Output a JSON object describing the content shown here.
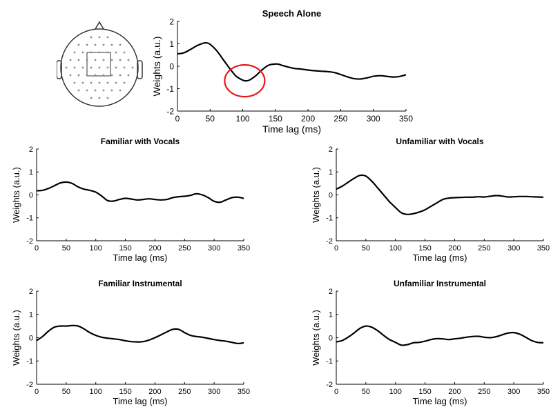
{
  "head_diagram": {
    "description_icon": "head-electrode-map-icon"
  },
  "colors": {
    "line": "#000000",
    "highlight": "#e8191b",
    "axis": "#000000",
    "electrode": "#8a8a8a"
  },
  "chart_data": [
    {
      "type": "line",
      "title": "Speech Alone",
      "xlabel": "Time lag (ms)",
      "ylabel": "Weights (a.u.)",
      "xlim": [
        0,
        350
      ],
      "ylim": [
        -2,
        2
      ],
      "xticks": [
        "0",
        "50",
        "100",
        "150",
        "200",
        "250",
        "300",
        "350"
      ],
      "yticks": [
        "-2",
        "-1",
        "0",
        "1",
        "2"
      ],
      "grid": false,
      "annotation": {
        "type": "circle",
        "x": 103,
        "y": -0.65,
        "color": "#e8191b"
      },
      "series": [
        {
          "x": [
            0,
            10,
            20,
            30,
            40,
            45,
            50,
            60,
            70,
            80,
            90,
            100,
            105,
            110,
            120,
            130,
            140,
            150,
            155,
            160,
            170,
            180,
            190,
            200,
            210,
            220,
            230,
            240,
            250,
            260,
            270,
            280,
            290,
            300,
            310,
            320,
            330,
            340,
            350
          ],
          "values": [
            0.55,
            0.6,
            0.75,
            0.92,
            1.03,
            1.04,
            0.98,
            0.7,
            0.3,
            -0.1,
            -0.45,
            -0.62,
            -0.65,
            -0.62,
            -0.42,
            -0.15,
            0.05,
            0.1,
            0.09,
            0.04,
            -0.04,
            -0.1,
            -0.13,
            -0.17,
            -0.2,
            -0.22,
            -0.24,
            -0.28,
            -0.37,
            -0.47,
            -0.55,
            -0.57,
            -0.52,
            -0.45,
            -0.42,
            -0.45,
            -0.48,
            -0.46,
            -0.38
          ]
        }
      ]
    },
    {
      "type": "line",
      "title": "Familiar with Vocals",
      "xlabel": "Time lag (ms)",
      "ylabel": "Weights (a.u.)",
      "xlim": [
        0,
        350
      ],
      "ylim": [
        -2,
        2
      ],
      "xticks": [
        "0",
        "50",
        "100",
        "150",
        "200",
        "250",
        "300",
        "350"
      ],
      "yticks": [
        "-2",
        "-1",
        "0",
        "1",
        "2"
      ],
      "grid": false,
      "series": [
        {
          "x": [
            0,
            10,
            20,
            30,
            40,
            50,
            60,
            70,
            80,
            90,
            100,
            110,
            120,
            130,
            140,
            150,
            160,
            170,
            180,
            190,
            200,
            210,
            220,
            230,
            240,
            250,
            260,
            270,
            280,
            290,
            300,
            310,
            320,
            330,
            340,
            350
          ],
          "values": [
            0.18,
            0.2,
            0.28,
            0.4,
            0.52,
            0.56,
            0.5,
            0.35,
            0.25,
            0.2,
            0.12,
            -0.05,
            -0.25,
            -0.27,
            -0.2,
            -0.15,
            -0.18,
            -0.22,
            -0.2,
            -0.17,
            -0.2,
            -0.22,
            -0.2,
            -0.12,
            -0.08,
            -0.06,
            -0.02,
            0.05,
            0.0,
            -0.12,
            -0.28,
            -0.32,
            -0.22,
            -0.12,
            -0.1,
            -0.15
          ]
        }
      ]
    },
    {
      "type": "line",
      "title": "Unfamiliar with Vocals",
      "xlabel": "Time lag (ms)",
      "ylabel": "Weights (a.u.)",
      "xlim": [
        0,
        350
      ],
      "ylim": [
        -2,
        2
      ],
      "xticks": [
        "0",
        "50",
        "100",
        "150",
        "200",
        "250",
        "300",
        "350"
      ],
      "yticks": [
        "-2",
        "-1",
        "0",
        "1",
        "2"
      ],
      "grid": false,
      "series": [
        {
          "x": [
            0,
            10,
            20,
            30,
            40,
            50,
            60,
            70,
            80,
            90,
            100,
            110,
            120,
            130,
            140,
            150,
            160,
            170,
            180,
            190,
            200,
            210,
            220,
            230,
            240,
            250,
            260,
            270,
            280,
            290,
            300,
            310,
            320,
            330,
            340,
            350
          ],
          "values": [
            0.25,
            0.38,
            0.55,
            0.72,
            0.85,
            0.82,
            0.6,
            0.3,
            0.0,
            -0.3,
            -0.55,
            -0.78,
            -0.85,
            -0.82,
            -0.75,
            -0.65,
            -0.5,
            -0.35,
            -0.2,
            -0.14,
            -0.12,
            -0.11,
            -0.1,
            -0.1,
            -0.08,
            -0.09,
            -0.06,
            -0.03,
            -0.05,
            -0.09,
            -0.08,
            -0.07,
            -0.07,
            -0.08,
            -0.09,
            -0.1
          ]
        }
      ]
    },
    {
      "type": "line",
      "title": "Familiar Instrumental",
      "xlabel": "Time lag (ms)",
      "ylabel": "Weights (a.u.)",
      "xlim": [
        0,
        350
      ],
      "ylim": [
        -2,
        2
      ],
      "xticks": [
        "0",
        "50",
        "100",
        "150",
        "200",
        "250",
        "300",
        "350"
      ],
      "yticks": [
        "-2",
        "-1",
        "0",
        "1",
        "2"
      ],
      "grid": false,
      "series": [
        {
          "x": [
            0,
            10,
            20,
            30,
            40,
            50,
            60,
            70,
            80,
            90,
            100,
            110,
            120,
            130,
            140,
            150,
            160,
            170,
            180,
            190,
            200,
            210,
            220,
            230,
            240,
            250,
            260,
            270,
            280,
            290,
            300,
            310,
            320,
            330,
            340,
            350
          ],
          "values": [
            -0.12,
            0.05,
            0.28,
            0.45,
            0.5,
            0.5,
            0.52,
            0.5,
            0.38,
            0.22,
            0.1,
            0.02,
            -0.02,
            -0.05,
            -0.08,
            -0.13,
            -0.17,
            -0.18,
            -0.17,
            -0.1,
            0.0,
            0.12,
            0.25,
            0.36,
            0.36,
            0.22,
            0.1,
            0.05,
            0.02,
            -0.03,
            -0.08,
            -0.12,
            -0.15,
            -0.2,
            -0.25,
            -0.22
          ]
        }
      ]
    },
    {
      "type": "line",
      "title": "Unfamiliar Instrumental",
      "xlabel": "Time lag (ms)",
      "ylabel": "Weights (a.u.)",
      "xlim": [
        0,
        350
      ],
      "ylim": [
        -2,
        2
      ],
      "xticks": [
        "0",
        "50",
        "100",
        "150",
        "200",
        "250",
        "300",
        "350"
      ],
      "yticks": [
        "-2",
        "-1",
        "0",
        "1",
        "2"
      ],
      "grid": false,
      "series": [
        {
          "x": [
            0,
            10,
            20,
            30,
            40,
            50,
            60,
            70,
            80,
            90,
            100,
            110,
            120,
            130,
            140,
            150,
            160,
            170,
            180,
            190,
            200,
            210,
            220,
            230,
            240,
            250,
            260,
            270,
            280,
            290,
            300,
            310,
            320,
            330,
            340,
            350
          ],
          "values": [
            -0.18,
            -0.12,
            0.02,
            0.2,
            0.4,
            0.5,
            0.45,
            0.3,
            0.1,
            -0.08,
            -0.2,
            -0.32,
            -0.3,
            -0.22,
            -0.2,
            -0.15,
            -0.08,
            -0.04,
            -0.05,
            -0.08,
            -0.05,
            -0.02,
            0.02,
            0.05,
            0.06,
            0.02,
            0.0,
            0.04,
            0.12,
            0.2,
            0.22,
            0.15,
            0.02,
            -0.12,
            -0.2,
            -0.22
          ]
        }
      ]
    }
  ]
}
